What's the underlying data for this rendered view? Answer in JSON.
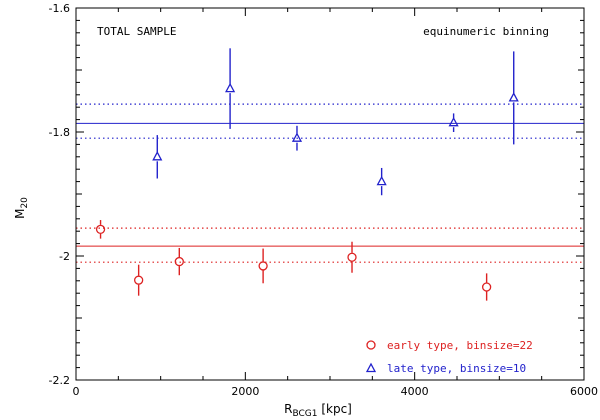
{
  "chart_data": {
    "type": "scatter",
    "xlabel": "R",
    "xlabel_sub": "BCG1",
    "xlabel_unit": " [kpc]",
    "ylabel": "M",
    "ylabel_sub": "20",
    "xlim": [
      0,
      6000
    ],
    "ylim": [
      -2.2,
      -1.6
    ],
    "xticks": [
      0,
      2000,
      4000,
      6000
    ],
    "xtick_labels": [
      "0",
      "2000",
      "4000",
      "6000"
    ],
    "yticks": [
      -2.2,
      -2.0,
      -1.8,
      -1.6
    ],
    "ytick_labels": [
      "-2.2",
      "-2",
      "-1.8",
      "-1.6"
    ],
    "grid": false,
    "annotations": {
      "top_left": "TOTAL SAMPLE",
      "top_right": "equinumeric binning"
    },
    "legend_position": "bottom-right",
    "series": [
      {
        "name": "early type, binsize=22",
        "color": "#dd2222",
        "marker": "circle",
        "x": [
          290,
          740,
          1220,
          2210,
          3260,
          4850
        ],
        "y": [
          -1.957,
          -2.039,
          -2.009,
          -2.016,
          -2.002,
          -2.05
        ],
        "yerr": [
          0.015,
          0.025,
          0.022,
          0.028,
          0.025,
          0.022
        ],
        "mean": -1.984,
        "mean_band": [
          -1.955,
          -2.01
        ]
      },
      {
        "name": "late type, binsize=10",
        "color": "#2222cc",
        "marker": "triangle",
        "x": [
          960,
          1820,
          2610,
          3610,
          4460,
          5170
        ],
        "y": [
          -1.84,
          -1.73,
          -1.81,
          -1.88,
          -1.785,
          -1.745
        ],
        "yerr": [
          0.035,
          0.065,
          0.02,
          0.022,
          0.015,
          0.075
        ],
        "mean": -1.786,
        "mean_band": [
          -1.755,
          -1.81
        ]
      }
    ]
  }
}
